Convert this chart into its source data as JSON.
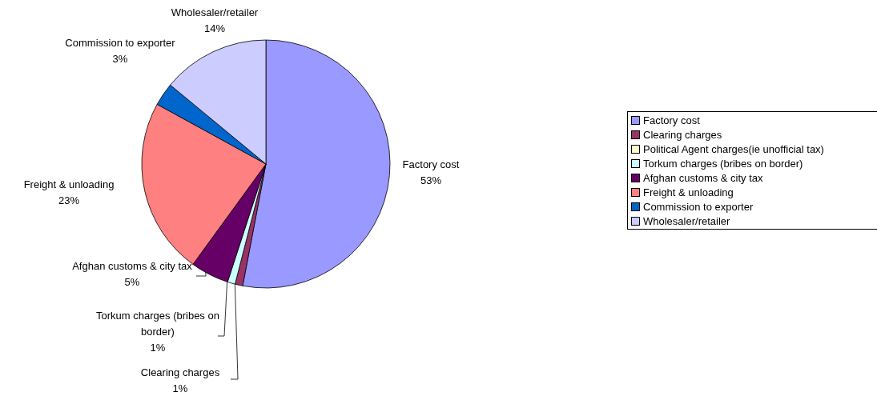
{
  "chart_data": {
    "type": "pie",
    "categories": [
      "Factory cost",
      "Clearing charges",
      "Political Agent charges(ie unofficial tax)",
      "Torkum charges (bribes on border)",
      "Afghan customs & city tax",
      "Freight & unloading",
      "Commission to exporter",
      "Wholesaler/retailer"
    ],
    "values": [
      53,
      1,
      0,
      1,
      5,
      23,
      3,
      14
    ],
    "value_labels": [
      "53%",
      "1%",
      null,
      "1%",
      "5%",
      "23%",
      "3%",
      "14%"
    ],
    "colors": [
      "#9999ff",
      "#993366",
      "#ffffcc",
      "#ccffff",
      "#660066",
      "#ff8080",
      "#0066cc",
      "#ccccff"
    ],
    "legend": "right"
  }
}
